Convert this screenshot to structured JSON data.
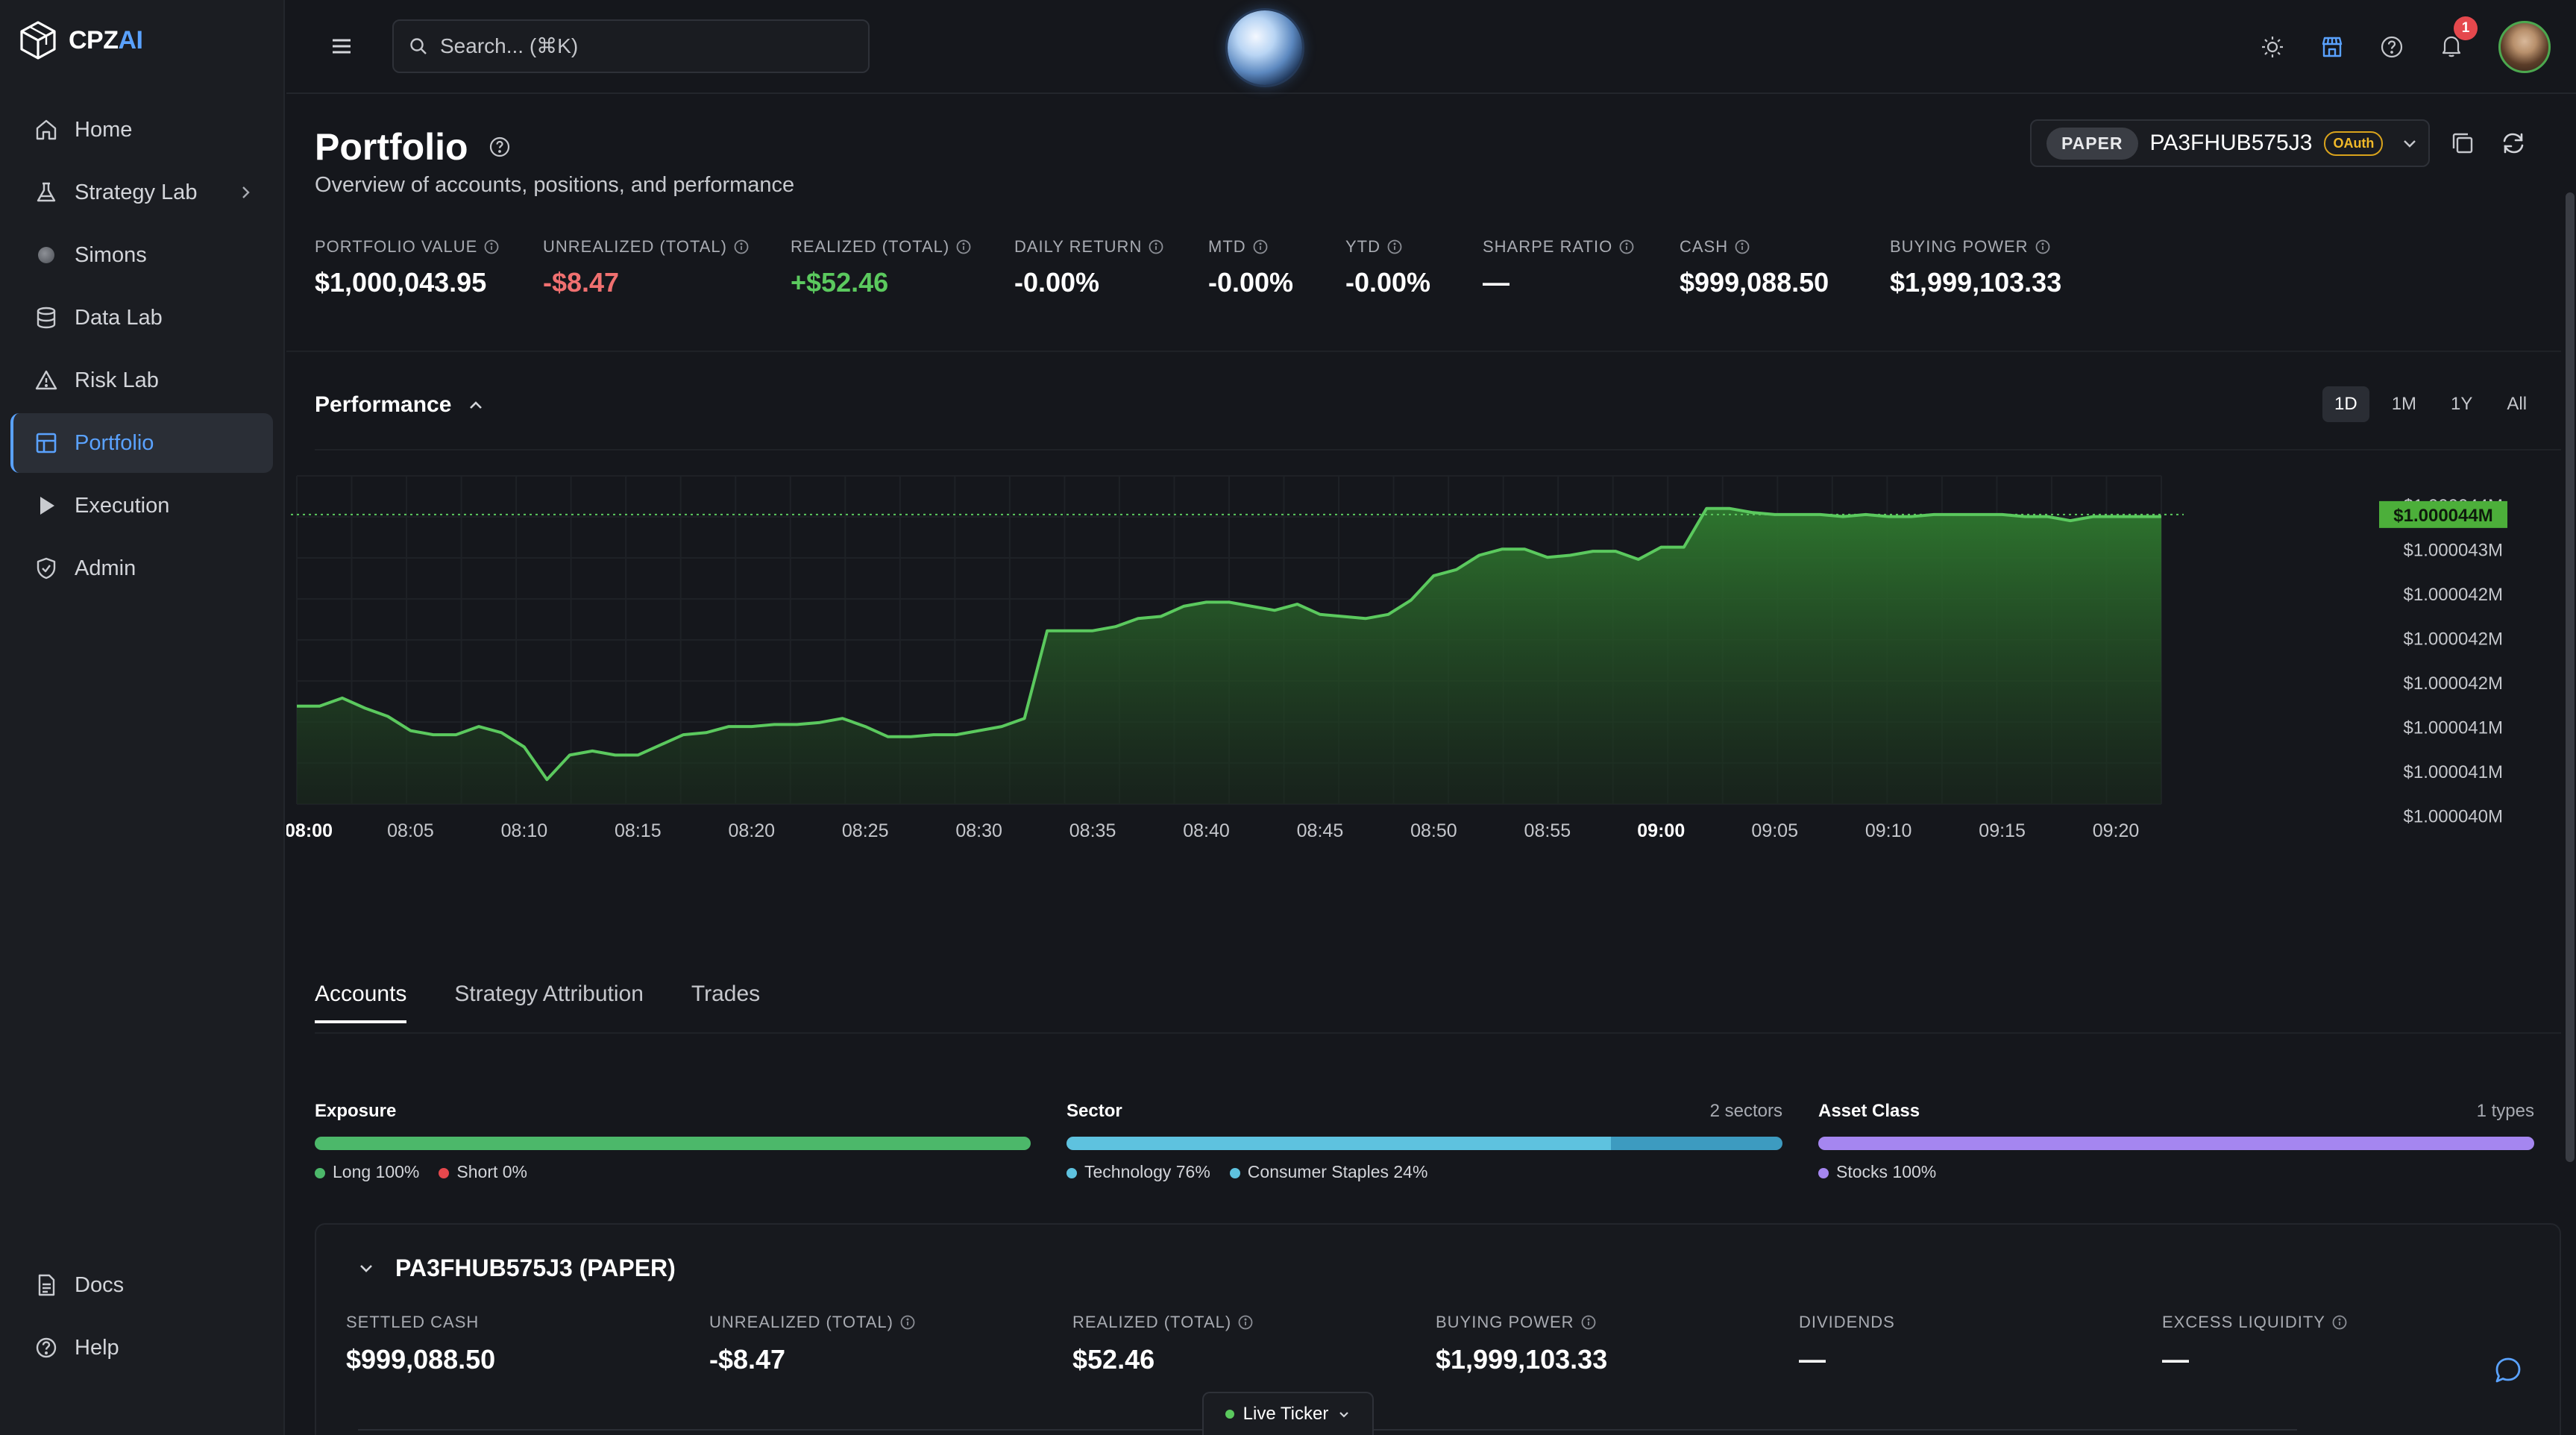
{
  "app": {
    "logo_left": "CPZ",
    "logo_right": "AI"
  },
  "sidebar": {
    "items": [
      {
        "label": "Home",
        "icon": "home-icon"
      },
      {
        "label": "Strategy Lab",
        "icon": "flask-icon"
      },
      {
        "label": "Simons",
        "icon": "orb-icon"
      },
      {
        "label": "Data Lab",
        "icon": "database-icon"
      },
      {
        "label": "Risk Lab",
        "icon": "warning-icon"
      },
      {
        "label": "Portfolio",
        "icon": "dashboard-icon",
        "active": true
      },
      {
        "label": "Execution",
        "icon": "play-icon"
      },
      {
        "label": "Admin",
        "icon": "shield-icon"
      }
    ],
    "bottom": [
      {
        "label": "Docs",
        "icon": "document-icon"
      },
      {
        "label": "Help",
        "icon": "help-icon"
      }
    ]
  },
  "topbar": {
    "search_placeholder": "Search... (⌘K)",
    "notification_count": "1"
  },
  "page": {
    "title": "Portfolio",
    "subtitle": "Overview of accounts, positions, and performance"
  },
  "account_selector": {
    "mode": "PAPER",
    "account_id": "PA3FHUB575J3",
    "auth": "OAuth"
  },
  "metrics": [
    {
      "label": "PORTFOLIO VALUE",
      "value": "$1,000,043.95",
      "tone": "neutral"
    },
    {
      "label": "UNREALIZED (TOTAL)",
      "value": "-$8.47",
      "tone": "negative"
    },
    {
      "label": "REALIZED (TOTAL)",
      "value": "+$52.46",
      "tone": "positive"
    },
    {
      "label": "DAILY RETURN",
      "value": "-0.00%",
      "tone": "neutral"
    },
    {
      "label": "MTD",
      "value": "-0.00%",
      "tone": "neutral"
    },
    {
      "label": "YTD",
      "value": "-0.00%",
      "tone": "neutral"
    },
    {
      "label": "SHARPE RATIO",
      "value": "—",
      "tone": "neutral"
    },
    {
      "label": "CASH",
      "value": "$999,088.50",
      "tone": "neutral"
    },
    {
      "label": "BUYING POWER",
      "value": "$1,999,103.33",
      "tone": "neutral"
    }
  ],
  "performance": {
    "title": "Performance",
    "ranges": [
      "1D",
      "1M",
      "1Y",
      "All"
    ],
    "active_range": "1D"
  },
  "chart_data": {
    "type": "area",
    "title": "",
    "xlabel": "",
    "ylabel": "",
    "x_ticks": [
      "08:00",
      "08:05",
      "08:10",
      "08:15",
      "08:20",
      "08:25",
      "08:30",
      "08:35",
      "08:40",
      "08:45",
      "08:50",
      "08:55",
      "09:00",
      "09:05",
      "09:10",
      "09:15",
      "09:20"
    ],
    "bold_ticks": [
      "08:00",
      "09:00"
    ],
    "y_ticks": [
      "$1.000044M",
      "$1.000043M",
      "$1.000042M",
      "$1.000042M",
      "$1.000042M",
      "$1.000041M",
      "$1.000041M",
      "$1.000040M"
    ],
    "current_value_label": "$1.000044M",
    "line_color": "#5bc95e",
    "x_minutes": [
      0,
      1,
      2,
      3,
      4,
      5,
      6,
      7,
      8,
      9,
      10,
      11,
      12,
      13,
      14,
      15,
      16,
      17,
      18,
      19,
      20,
      21,
      22,
      23,
      24,
      25,
      26,
      27,
      28,
      29,
      30,
      31,
      32,
      33,
      34,
      35,
      36,
      37,
      38,
      39,
      40,
      41,
      42,
      43,
      44,
      45,
      46,
      47,
      48,
      49,
      50,
      51,
      52,
      53,
      54,
      55,
      56,
      57,
      58,
      59,
      60,
      61,
      62,
      63,
      64,
      65,
      66,
      67,
      68,
      69,
      70,
      71,
      72,
      73,
      74,
      75,
      76,
      77,
      78,
      79,
      80,
      81,
      82
    ],
    "values": [
      1000040.18,
      1000040.18,
      1000040.22,
      1000040.17,
      1000040.13,
      1000040.06,
      1000040.04,
      1000040.04,
      1000040.08,
      1000040.05,
      1000039.98,
      1000039.82,
      1000039.94,
      1000039.96,
      1000039.94,
      1000039.94,
      1000039.99,
      1000040.04,
      1000040.05,
      1000040.08,
      1000040.08,
      1000040.09,
      1000040.09,
      1000040.1,
      1000040.12,
      1000040.08,
      1000040.03,
      1000040.03,
      1000040.04,
      1000040.04,
      1000040.06,
      1000040.08,
      1000040.12,
      1000040.55,
      1000040.55,
      1000040.55,
      1000040.57,
      1000040.61,
      1000040.62,
      1000040.67,
      1000040.69,
      1000040.69,
      1000040.67,
      1000040.65,
      1000040.68,
      1000040.63,
      1000040.62,
      1000040.61,
      1000040.63,
      1000040.7,
      1000040.82,
      1000040.85,
      1000040.92,
      1000040.95,
      1000040.95,
      1000040.91,
      1000040.92,
      1000040.94,
      1000040.94,
      1000040.9,
      1000040.96,
      1000040.96,
      1000041.15,
      1000041.15,
      1000041.13,
      1000041.12,
      1000041.12,
      1000041.12,
      1000041.11,
      1000041.12,
      1000041.11,
      1000041.11,
      1000041.12,
      1000041.12,
      1000041.12,
      1000041.12,
      1000041.11,
      1000041.11,
      1000041.09,
      1000041.11,
      1000041.11,
      1000041.11,
      1000041.11
    ],
    "ylim": [
      1000039.7,
      1000041.2
    ],
    "reference_line": 1000041.12,
    "grid": true
  },
  "tabs": [
    {
      "label": "Accounts",
      "active": true
    },
    {
      "label": "Strategy Attribution",
      "active": false
    },
    {
      "label": "Trades",
      "active": false
    }
  ],
  "distributions": [
    {
      "title": "Exposure",
      "count": "",
      "segments": [
        {
          "label": "Long 100%",
          "pct": 100,
          "color": "#4cb86a"
        },
        {
          "label": "Short 0%",
          "pct": 0,
          "color": "#e5484d"
        }
      ]
    },
    {
      "title": "Sector",
      "count": "2 sectors",
      "segments": [
        {
          "label": "Technology 76%",
          "pct": 76,
          "color": "#5ec2df"
        },
        {
          "label": "Consumer Staples 24%",
          "pct": 24,
          "color": "#3d9bc0"
        }
      ]
    },
    {
      "title": "Asset Class",
      "count": "1 types",
      "segments": [
        {
          "label": "Stocks 100%",
          "pct": 100,
          "color": "#a586f0"
        }
      ]
    }
  ],
  "account_card": {
    "title": "PA3FHUB575J3 (PAPER)",
    "metrics": [
      {
        "label": "SETTLED CASH",
        "value": "$999,088.50",
        "info": false
      },
      {
        "label": "UNREALIZED (TOTAL)",
        "value": "-$8.47",
        "info": true
      },
      {
        "label": "REALIZED (TOTAL)",
        "value": "$52.46",
        "info": true
      },
      {
        "label": "BUYING POWER",
        "value": "$1,999,103.33",
        "info": true
      },
      {
        "label": "DIVIDENDS",
        "value": "—",
        "info": false
      },
      {
        "label": "EXCESS LIQUIDITY",
        "value": "—",
        "info": true
      }
    ]
  },
  "live_ticker": {
    "label": "Live Ticker"
  }
}
